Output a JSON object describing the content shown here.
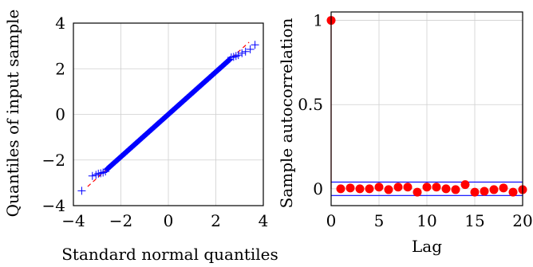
{
  "chart_data": [
    {
      "type": "scatter",
      "subtype": "qq-plot",
      "xlabel": "Standard normal quantiles",
      "ylabel": "Quantiles of input sample",
      "xlim": [
        -4,
        4
      ],
      "ylim": [
        -4,
        4
      ],
      "xticks": [
        -4,
        -2,
        0,
        2,
        4
      ],
      "yticks": [
        -4,
        -2,
        0,
        2,
        4
      ],
      "xtick_labels": [
        "−4",
        "−2",
        "0",
        "2",
        "4"
      ],
      "ytick_labels": [
        "−4",
        "−2",
        "0",
        "2",
        "4"
      ],
      "grid": true,
      "marker": "+",
      "marker_color": "#0000ff",
      "reference_line": {
        "style": "dashed",
        "color": "#ff0000",
        "slope": 0.93,
        "intercept": 0
      },
      "outlier_points": {
        "x": [
          -3.65,
          -3.2,
          -3.05,
          -2.95,
          -2.85,
          -2.75,
          -2.65,
          2.65,
          2.75,
          2.85,
          2.95,
          3.1,
          3.25,
          3.45,
          3.65
        ],
        "y": [
          -3.35,
          -2.7,
          -2.65,
          -2.6,
          -2.58,
          -2.55,
          -2.5,
          2.5,
          2.52,
          2.56,
          2.6,
          2.68,
          2.75,
          2.85,
          3.05
        ]
      },
      "dense_segment": {
        "x_range": [
          -2.6,
          2.6
        ],
        "slope": 0.93,
        "intercept": 0
      }
    },
    {
      "type": "stem",
      "xlabel": "Lag",
      "ylabel": "Sample autocorrelation",
      "xlim": [
        0,
        20
      ],
      "ylim": [
        -0.1,
        1.05
      ],
      "xticks": [
        0,
        5,
        10,
        15,
        20
      ],
      "yticks": [
        0,
        0.5,
        1
      ],
      "xtick_labels": [
        "0",
        "5",
        "10",
        "15",
        "20"
      ],
      "ytick_labels": [
        "0",
        "0.5",
        "1"
      ],
      "grid": true,
      "stem_color": "#ff0000",
      "confidence_bounds": {
        "upper": 0.04,
        "lower": -0.04,
        "color": "#0000ff"
      },
      "x": [
        0,
        1,
        2,
        3,
        4,
        5,
        6,
        7,
        8,
        9,
        10,
        11,
        12,
        13,
        14,
        15,
        16,
        17,
        18,
        19,
        20
      ],
      "y": [
        1.0,
        0.0,
        0.005,
        0.0,
        0.0,
        0.01,
        -0.005,
        0.01,
        0.01,
        -0.02,
        0.01,
        0.01,
        0.0,
        -0.005,
        0.025,
        -0.02,
        -0.015,
        -0.005,
        0.005,
        -0.02,
        -0.005
      ]
    }
  ]
}
